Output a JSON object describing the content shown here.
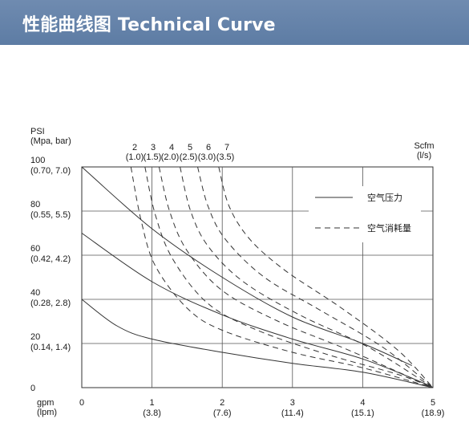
{
  "header": {
    "title": "性能曲线图 Technical Curve"
  },
  "chart_data": {
    "type": "line",
    "y_axis_title": [
      "PSI",
      "(Mpa, bar)"
    ],
    "y_ticks": [
      {
        "value": 0,
        "labels": [
          "0"
        ]
      },
      {
        "value": 20,
        "labels": [
          "20",
          "(0.14, 1.4)"
        ]
      },
      {
        "value": 40,
        "labels": [
          "40",
          "(0.28, 2.8)"
        ]
      },
      {
        "value": 60,
        "labels": [
          "60",
          "(0.42, 4.2)"
        ]
      },
      {
        "value": 80,
        "labels": [
          "80",
          "(0.55, 5.5)"
        ]
      },
      {
        "value": 100,
        "labels": [
          "100",
          "(0.70, 7.0)"
        ]
      }
    ],
    "x_axis_title": [
      "gpm",
      "(lpm)"
    ],
    "x_ticks": [
      {
        "value": 0,
        "labels": [
          "0",
          ""
        ]
      },
      {
        "value": 1,
        "labels": [
          "1",
          "(3.8)"
        ]
      },
      {
        "value": 2,
        "labels": [
          "2",
          "(7.6)"
        ]
      },
      {
        "value": 3,
        "labels": [
          "3",
          "(11.4)"
        ]
      },
      {
        "value": 4,
        "labels": [
          "4",
          "(15.1)"
        ]
      },
      {
        "value": 5,
        "labels": [
          "5",
          "(18.9)"
        ]
      }
    ],
    "scfm_title": [
      "Scfm",
      "(l/s)"
    ],
    "scfm_labels": [
      {
        "top": "2",
        "bottom": "(1.0)"
      },
      {
        "top": "3",
        "bottom": "(1.5)"
      },
      {
        "top": "4",
        "bottom": "(2.0)"
      },
      {
        "top": "5",
        "bottom": "(2.5)"
      },
      {
        "top": "6",
        "bottom": "(3.0)"
      },
      {
        "top": "7",
        "bottom": "(3.5)"
      }
    ],
    "xlim": [
      0,
      5
    ],
    "ylim": [
      0,
      100
    ],
    "grid": true,
    "legend": {
      "position": "top-right",
      "items": [
        {
          "style": "solid",
          "label": "空气压力"
        },
        {
          "style": "dashed",
          "label": "空气消耗量"
        }
      ]
    },
    "pressure_curves": [
      {
        "points": [
          [
            0,
            40
          ],
          [
            0.5,
            28
          ],
          [
            1,
            22
          ],
          [
            2,
            16
          ],
          [
            3,
            11
          ],
          [
            4,
            7
          ],
          [
            5,
            0
          ]
        ]
      },
      {
        "points": [
          [
            0,
            70
          ],
          [
            1,
            48
          ],
          [
            2,
            33
          ],
          [
            3,
            22
          ],
          [
            4,
            13
          ],
          [
            4.8,
            3
          ],
          [
            5,
            0
          ]
        ]
      },
      {
        "points": [
          [
            0,
            100
          ],
          [
            1,
            72
          ],
          [
            2,
            50
          ],
          [
            3,
            32
          ],
          [
            4,
            20
          ],
          [
            4.7,
            10
          ]
        ]
      }
    ],
    "air_consumption_curves": [
      {
        "points": [
          [
            0.7,
            100
          ],
          [
            0.85,
            75
          ],
          [
            1.05,
            55
          ],
          [
            1.5,
            36
          ],
          [
            2,
            26
          ],
          [
            3,
            16
          ],
          [
            4,
            9
          ],
          [
            5,
            0
          ]
        ]
      },
      {
        "points": [
          [
            0.9,
            100
          ],
          [
            1.05,
            78
          ],
          [
            1.3,
            58
          ],
          [
            1.8,
            38
          ],
          [
            2.5,
            26
          ],
          [
            3.5,
            15
          ],
          [
            4.5,
            6
          ],
          [
            5,
            0
          ]
        ]
      },
      {
        "points": [
          [
            1.1,
            100
          ],
          [
            1.25,
            80
          ],
          [
            1.5,
            62
          ],
          [
            2,
            44
          ],
          [
            2.8,
            30
          ],
          [
            3.8,
            17
          ],
          [
            5,
            0
          ]
        ]
      },
      {
        "points": [
          [
            1.4,
            100
          ],
          [
            1.55,
            80
          ],
          [
            1.8,
            64
          ],
          [
            2.3,
            48
          ],
          [
            3.1,
            33
          ],
          [
            4.1,
            18
          ],
          [
            5,
            0
          ]
        ]
      },
      {
        "points": [
          [
            1.65,
            100
          ],
          [
            1.8,
            82
          ],
          [
            2.05,
            67
          ],
          [
            2.6,
            50
          ],
          [
            3.4,
            35
          ],
          [
            4.3,
            18
          ],
          [
            5,
            0
          ]
        ]
      },
      {
        "points": [
          [
            1.95,
            100
          ],
          [
            2.1,
            82
          ],
          [
            2.4,
            67
          ],
          [
            2.9,
            53
          ],
          [
            3.7,
            36
          ],
          [
            4.5,
            17
          ],
          [
            5,
            0
          ]
        ]
      }
    ]
  }
}
